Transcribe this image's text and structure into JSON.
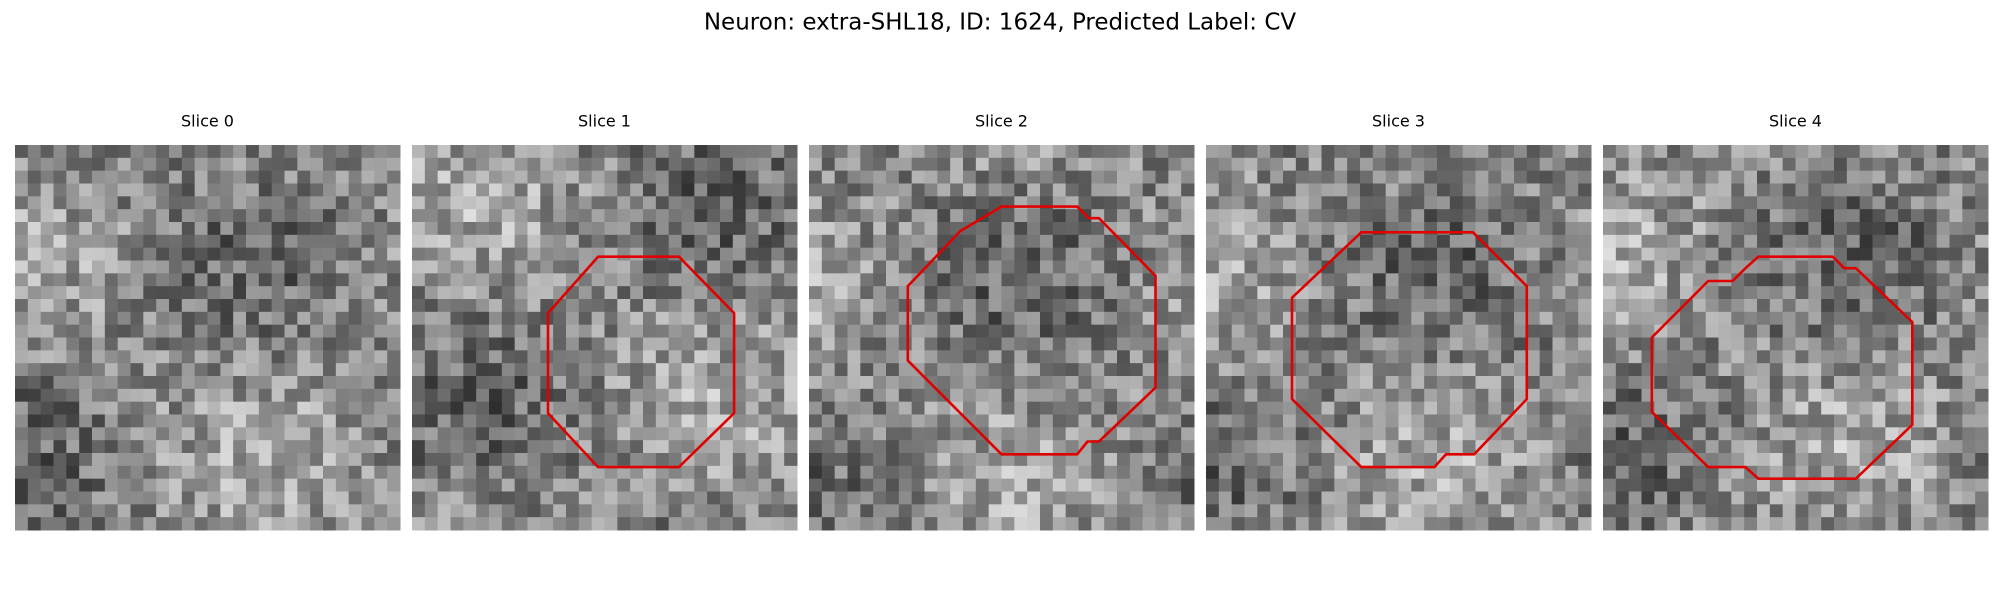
{
  "title": "Neuron: extra-SHL18, ID: 1624, Predicted Label: CV",
  "panels": [
    {
      "title": "Slice 0"
    },
    {
      "title": "Slice 1"
    },
    {
      "title": "Slice 2"
    },
    {
      "title": "Slice 3"
    },
    {
      "title": "Slice 4"
    }
  ]
}
